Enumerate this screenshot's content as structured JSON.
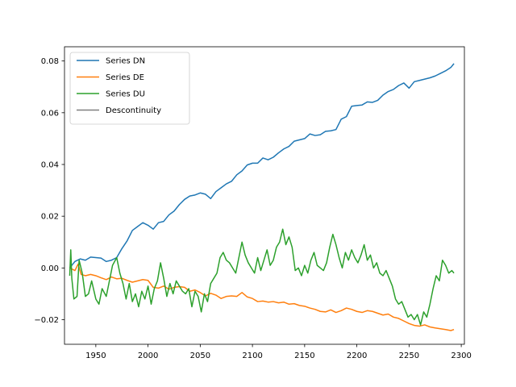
{
  "chart_data": {
    "type": "line",
    "title": "",
    "xlabel": "",
    "ylabel": "",
    "xlim": [
      1920,
      2303
    ],
    "ylim": [
      -0.0295,
      0.0855
    ],
    "x_ticks": [
      1950,
      2000,
      2050,
      2100,
      2150,
      2200,
      2250,
      2300
    ],
    "x_tick_labels": [
      "1950",
      "2000",
      "2050",
      "2100",
      "2150",
      "2200",
      "2250",
      "2300"
    ],
    "y_ticks": [
      -0.02,
      0.0,
      0.02,
      0.04,
      0.06,
      0.08
    ],
    "y_tick_labels": [
      "−0.02",
      "0.00",
      "0.02",
      "0.04",
      "0.06",
      "0.08"
    ],
    "grid": false,
    "legend_position": "top-left",
    "series": [
      {
        "name": "Series DN",
        "color": "#1f77b4",
        "points": [
          [
            1925,
            0.0
          ],
          [
            1930,
            0.0025
          ],
          [
            1935,
            0.0035
          ],
          [
            1940,
            0.003
          ],
          [
            1945,
            0.0042
          ],
          [
            1950,
            0.004
          ],
          [
            1955,
            0.0038
          ],
          [
            1960,
            0.0025
          ],
          [
            1965,
            0.003
          ],
          [
            1970,
            0.004
          ],
          [
            1975,
            0.0075
          ],
          [
            1980,
            0.0105
          ],
          [
            1985,
            0.0145
          ],
          [
            1990,
            0.016
          ],
          [
            1995,
            0.0175
          ],
          [
            2000,
            0.0165
          ],
          [
            2005,
            0.015
          ],
          [
            2010,
            0.0175
          ],
          [
            2015,
            0.018
          ],
          [
            2020,
            0.0205
          ],
          [
            2025,
            0.022
          ],
          [
            2030,
            0.0245
          ],
          [
            2035,
            0.0265
          ],
          [
            2040,
            0.0278
          ],
          [
            2045,
            0.0282
          ],
          [
            2050,
            0.029
          ],
          [
            2055,
            0.0285
          ],
          [
            2060,
            0.0268
          ],
          [
            2065,
            0.0295
          ],
          [
            2070,
            0.031
          ],
          [
            2075,
            0.0325
          ],
          [
            2080,
            0.0335
          ],
          [
            2085,
            0.036
          ],
          [
            2090,
            0.0375
          ],
          [
            2095,
            0.0398
          ],
          [
            2100,
            0.0405
          ],
          [
            2105,
            0.0405
          ],
          [
            2110,
            0.0425
          ],
          [
            2115,
            0.0418
          ],
          [
            2120,
            0.0428
          ],
          [
            2125,
            0.0445
          ],
          [
            2130,
            0.046
          ],
          [
            2135,
            0.047
          ],
          [
            2140,
            0.049
          ],
          [
            2145,
            0.0495
          ],
          [
            2150,
            0.05
          ],
          [
            2155,
            0.0518
          ],
          [
            2160,
            0.0512
          ],
          [
            2165,
            0.0515
          ],
          [
            2170,
            0.0528
          ],
          [
            2175,
            0.053
          ],
          [
            2180,
            0.0535
          ],
          [
            2185,
            0.0575
          ],
          [
            2190,
            0.0585
          ],
          [
            2195,
            0.0625
          ],
          [
            2200,
            0.0628
          ],
          [
            2205,
            0.063
          ],
          [
            2210,
            0.0642
          ],
          [
            2215,
            0.064
          ],
          [
            2220,
            0.0648
          ],
          [
            2225,
            0.0668
          ],
          [
            2230,
            0.0682
          ],
          [
            2235,
            0.069
          ],
          [
            2240,
            0.0705
          ],
          [
            2245,
            0.0715
          ],
          [
            2250,
            0.0695
          ],
          [
            2255,
            0.072
          ],
          [
            2260,
            0.0725
          ],
          [
            2265,
            0.073
          ],
          [
            2270,
            0.0735
          ],
          [
            2275,
            0.0742
          ],
          [
            2280,
            0.0752
          ],
          [
            2285,
            0.0762
          ],
          [
            2290,
            0.0775
          ],
          [
            2293,
            0.079
          ]
        ]
      },
      {
        "name": "Series DE",
        "color": "#ff7f0e",
        "points": [
          [
            1925,
            0.0
          ],
          [
            1930,
            -0.001
          ],
          [
            1933,
            0.0015
          ],
          [
            1936,
            -0.0025
          ],
          [
            1940,
            -0.003
          ],
          [
            1945,
            -0.0025
          ],
          [
            1950,
            -0.003
          ],
          [
            1955,
            -0.0038
          ],
          [
            1960,
            -0.0045
          ],
          [
            1965,
            -0.0035
          ],
          [
            1970,
            -0.0042
          ],
          [
            1975,
            -0.004
          ],
          [
            1980,
            -0.0048
          ],
          [
            1985,
            -0.0055
          ],
          [
            1990,
            -0.005
          ],
          [
            1995,
            -0.0045
          ],
          [
            2000,
            -0.0048
          ],
          [
            2005,
            -0.0075
          ],
          [
            2010,
            -0.0078
          ],
          [
            2015,
            -0.007
          ],
          [
            2020,
            -0.0082
          ],
          [
            2025,
            -0.0075
          ],
          [
            2030,
            -0.0072
          ],
          [
            2035,
            -0.0075
          ],
          [
            2040,
            -0.009
          ],
          [
            2045,
            -0.0085
          ],
          [
            2050,
            -0.0095
          ],
          [
            2055,
            -0.0108
          ],
          [
            2060,
            -0.0098
          ],
          [
            2065,
            -0.0105
          ],
          [
            2070,
            -0.0118
          ],
          [
            2075,
            -0.011
          ],
          [
            2080,
            -0.0108
          ],
          [
            2085,
            -0.011
          ],
          [
            2090,
            -0.0095
          ],
          [
            2095,
            -0.0112
          ],
          [
            2100,
            -0.0118
          ],
          [
            2105,
            -0.013
          ],
          [
            2110,
            -0.0128
          ],
          [
            2115,
            -0.0132
          ],
          [
            2120,
            -0.013
          ],
          [
            2125,
            -0.0135
          ],
          [
            2130,
            -0.0132
          ],
          [
            2135,
            -0.014
          ],
          [
            2140,
            -0.0138
          ],
          [
            2145,
            -0.0145
          ],
          [
            2150,
            -0.0148
          ],
          [
            2155,
            -0.0155
          ],
          [
            2160,
            -0.016
          ],
          [
            2165,
            -0.0168
          ],
          [
            2170,
            -0.017
          ],
          [
            2175,
            -0.0162
          ],
          [
            2180,
            -0.0172
          ],
          [
            2185,
            -0.0165
          ],
          [
            2190,
            -0.0155
          ],
          [
            2195,
            -0.016
          ],
          [
            2200,
            -0.0168
          ],
          [
            2205,
            -0.0172
          ],
          [
            2210,
            -0.0165
          ],
          [
            2215,
            -0.0168
          ],
          [
            2220,
            -0.0175
          ],
          [
            2225,
            -0.0182
          ],
          [
            2230,
            -0.0178
          ],
          [
            2235,
            -0.019
          ],
          [
            2240,
            -0.0195
          ],
          [
            2245,
            -0.0205
          ],
          [
            2250,
            -0.0215
          ],
          [
            2255,
            -0.0222
          ],
          [
            2260,
            -0.0225
          ],
          [
            2265,
            -0.022
          ],
          [
            2270,
            -0.0228
          ],
          [
            2275,
            -0.0232
          ],
          [
            2280,
            -0.0235
          ],
          [
            2285,
            -0.0238
          ],
          [
            2290,
            -0.0242
          ],
          [
            2293,
            -0.0238
          ]
        ]
      },
      {
        "name": "Series DU",
        "color": "#2ca02c",
        "points": [
          [
            1925,
            -0.003
          ],
          [
            1926,
            0.007
          ],
          [
            1927,
            -0.004
          ],
          [
            1929,
            -0.012
          ],
          [
            1932,
            -0.011
          ],
          [
            1934,
            0.003
          ],
          [
            1937,
            -0.002
          ],
          [
            1940,
            -0.011
          ],
          [
            1943,
            -0.01
          ],
          [
            1946,
            -0.005
          ],
          [
            1950,
            -0.012
          ],
          [
            1953,
            -0.014
          ],
          [
            1956,
            -0.008
          ],
          [
            1960,
            -0.011
          ],
          [
            1963,
            -0.005
          ],
          [
            1966,
            0.001
          ],
          [
            1970,
            0.004
          ],
          [
            1973,
            -0.002
          ],
          [
            1976,
            -0.006
          ],
          [
            1979,
            -0.012
          ],
          [
            1982,
            -0.006
          ],
          [
            1985,
            -0.013
          ],
          [
            1988,
            -0.01
          ],
          [
            1991,
            -0.015
          ],
          [
            1994,
            -0.009
          ],
          [
            1997,
            -0.012
          ],
          [
            2000,
            -0.007
          ],
          [
            2003,
            -0.014
          ],
          [
            2006,
            -0.008
          ],
          [
            2009,
            -0.005
          ],
          [
            2012,
            0.002
          ],
          [
            2015,
            -0.004
          ],
          [
            2018,
            -0.011
          ],
          [
            2021,
            -0.006
          ],
          [
            2024,
            -0.01
          ],
          [
            2027,
            -0.005
          ],
          [
            2030,
            -0.007
          ],
          [
            2033,
            -0.009
          ],
          [
            2036,
            -0.01
          ],
          [
            2039,
            -0.008
          ],
          [
            2042,
            -0.015
          ],
          [
            2045,
            -0.009
          ],
          [
            2048,
            -0.011
          ],
          [
            2051,
            -0.017
          ],
          [
            2054,
            -0.01
          ],
          [
            2057,
            -0.013
          ],
          [
            2060,
            -0.006
          ],
          [
            2063,
            -0.004
          ],
          [
            2066,
            -0.002
          ],
          [
            2069,
            0.004
          ],
          [
            2072,
            0.006
          ],
          [
            2075,
            0.003
          ],
          [
            2078,
            0.002
          ],
          [
            2081,
            0.0
          ],
          [
            2084,
            -0.002
          ],
          [
            2087,
            0.004
          ],
          [
            2090,
            0.01
          ],
          [
            2093,
            0.005
          ],
          [
            2096,
            0.002
          ],
          [
            2099,
            0.0
          ],
          [
            2102,
            -0.002
          ],
          [
            2105,
            0.004
          ],
          [
            2108,
            -0.001
          ],
          [
            2111,
            0.003
          ],
          [
            2114,
            0.007
          ],
          [
            2117,
            0.001
          ],
          [
            2120,
            0.003
          ],
          [
            2123,
            0.008
          ],
          [
            2126,
            0.01
          ],
          [
            2129,
            0.015
          ],
          [
            2132,
            0.009
          ],
          [
            2135,
            0.012
          ],
          [
            2138,
            0.008
          ],
          [
            2141,
            -0.001
          ],
          [
            2144,
            0.0
          ],
          [
            2147,
            -0.003
          ],
          [
            2150,
            0.001
          ],
          [
            2153,
            -0.002
          ],
          [
            2156,
            0.003
          ],
          [
            2159,
            0.006
          ],
          [
            2162,
            0.001
          ],
          [
            2165,
            0.0
          ],
          [
            2168,
            -0.001
          ],
          [
            2171,
            0.002
          ],
          [
            2174,
            0.008
          ],
          [
            2177,
            0.013
          ],
          [
            2180,
            0.009
          ],
          [
            2183,
            0.004
          ],
          [
            2186,
            0.0
          ],
          [
            2189,
            0.006
          ],
          [
            2192,
            0.003
          ],
          [
            2195,
            0.007
          ],
          [
            2198,
            0.004
          ],
          [
            2201,
            0.002
          ],
          [
            2204,
            0.005
          ],
          [
            2207,
            0.009
          ],
          [
            2210,
            0.003
          ],
          [
            2213,
            0.005
          ],
          [
            2216,
            0.0
          ],
          [
            2219,
            0.002
          ],
          [
            2222,
            -0.002
          ],
          [
            2225,
            -0.003
          ],
          [
            2228,
            -0.001
          ],
          [
            2231,
            -0.004
          ],
          [
            2234,
            -0.007
          ],
          [
            2237,
            -0.012
          ],
          [
            2240,
            -0.014
          ],
          [
            2243,
            -0.013
          ],
          [
            2246,
            -0.016
          ],
          [
            2249,
            -0.019
          ],
          [
            2252,
            -0.018
          ],
          [
            2255,
            -0.02
          ],
          [
            2258,
            -0.018
          ],
          [
            2261,
            -0.022
          ],
          [
            2264,
            -0.017
          ],
          [
            2267,
            -0.019
          ],
          [
            2270,
            -0.014
          ],
          [
            2273,
            -0.008
          ],
          [
            2276,
            -0.003
          ],
          [
            2279,
            -0.005
          ],
          [
            2282,
            0.003
          ],
          [
            2285,
            0.001
          ],
          [
            2288,
            -0.002
          ],
          [
            2291,
            -0.001
          ],
          [
            2293,
            -0.002
          ]
        ]
      },
      {
        "name": "Descontinuity",
        "color": "#7f7f7f",
        "points": []
      }
    ]
  }
}
